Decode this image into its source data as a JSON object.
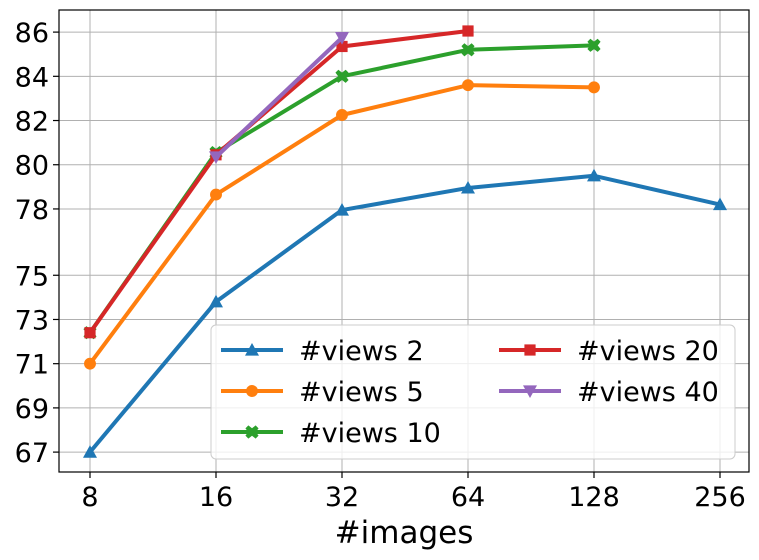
{
  "chart_data": {
    "type": "line",
    "title": "",
    "xlabel": "#images",
    "ylabel": "",
    "x": [
      "8",
      "16",
      "32",
      "64",
      "128",
      "256"
    ],
    "y_ticks": [
      "67",
      "69",
      "71",
      "73",
      "75",
      "78",
      "80",
      "82",
      "84",
      "86"
    ],
    "ylim": [
      66.1,
      87.0
    ],
    "grid": true,
    "legend": {
      "placement": "lower-right",
      "columns": 2
    },
    "series": [
      {
        "name": "#views 2",
        "color": "#1f77b4",
        "marker": "triangle-up",
        "values": [
          67.0,
          73.8,
          77.95,
          78.95,
          79.5,
          78.2
        ]
      },
      {
        "name": "#views 5",
        "color": "#ff7f0e",
        "marker": "circle",
        "values": [
          71.0,
          78.65,
          82.25,
          83.6,
          83.5,
          null
        ]
      },
      {
        "name": "#views 10",
        "color": "#2ca02c",
        "marker": "x-filled",
        "values": [
          72.4,
          80.55,
          84.0,
          85.2,
          85.4,
          null
        ]
      },
      {
        "name": "#views 20",
        "color": "#d62728",
        "marker": "square",
        "values": [
          72.4,
          80.45,
          85.35,
          86.05,
          null,
          null
        ]
      },
      {
        "name": "#views 40",
        "color": "#9467bd",
        "marker": "triangle-down",
        "values": [
          null,
          80.35,
          85.75,
          null,
          null,
          null
        ]
      }
    ]
  }
}
